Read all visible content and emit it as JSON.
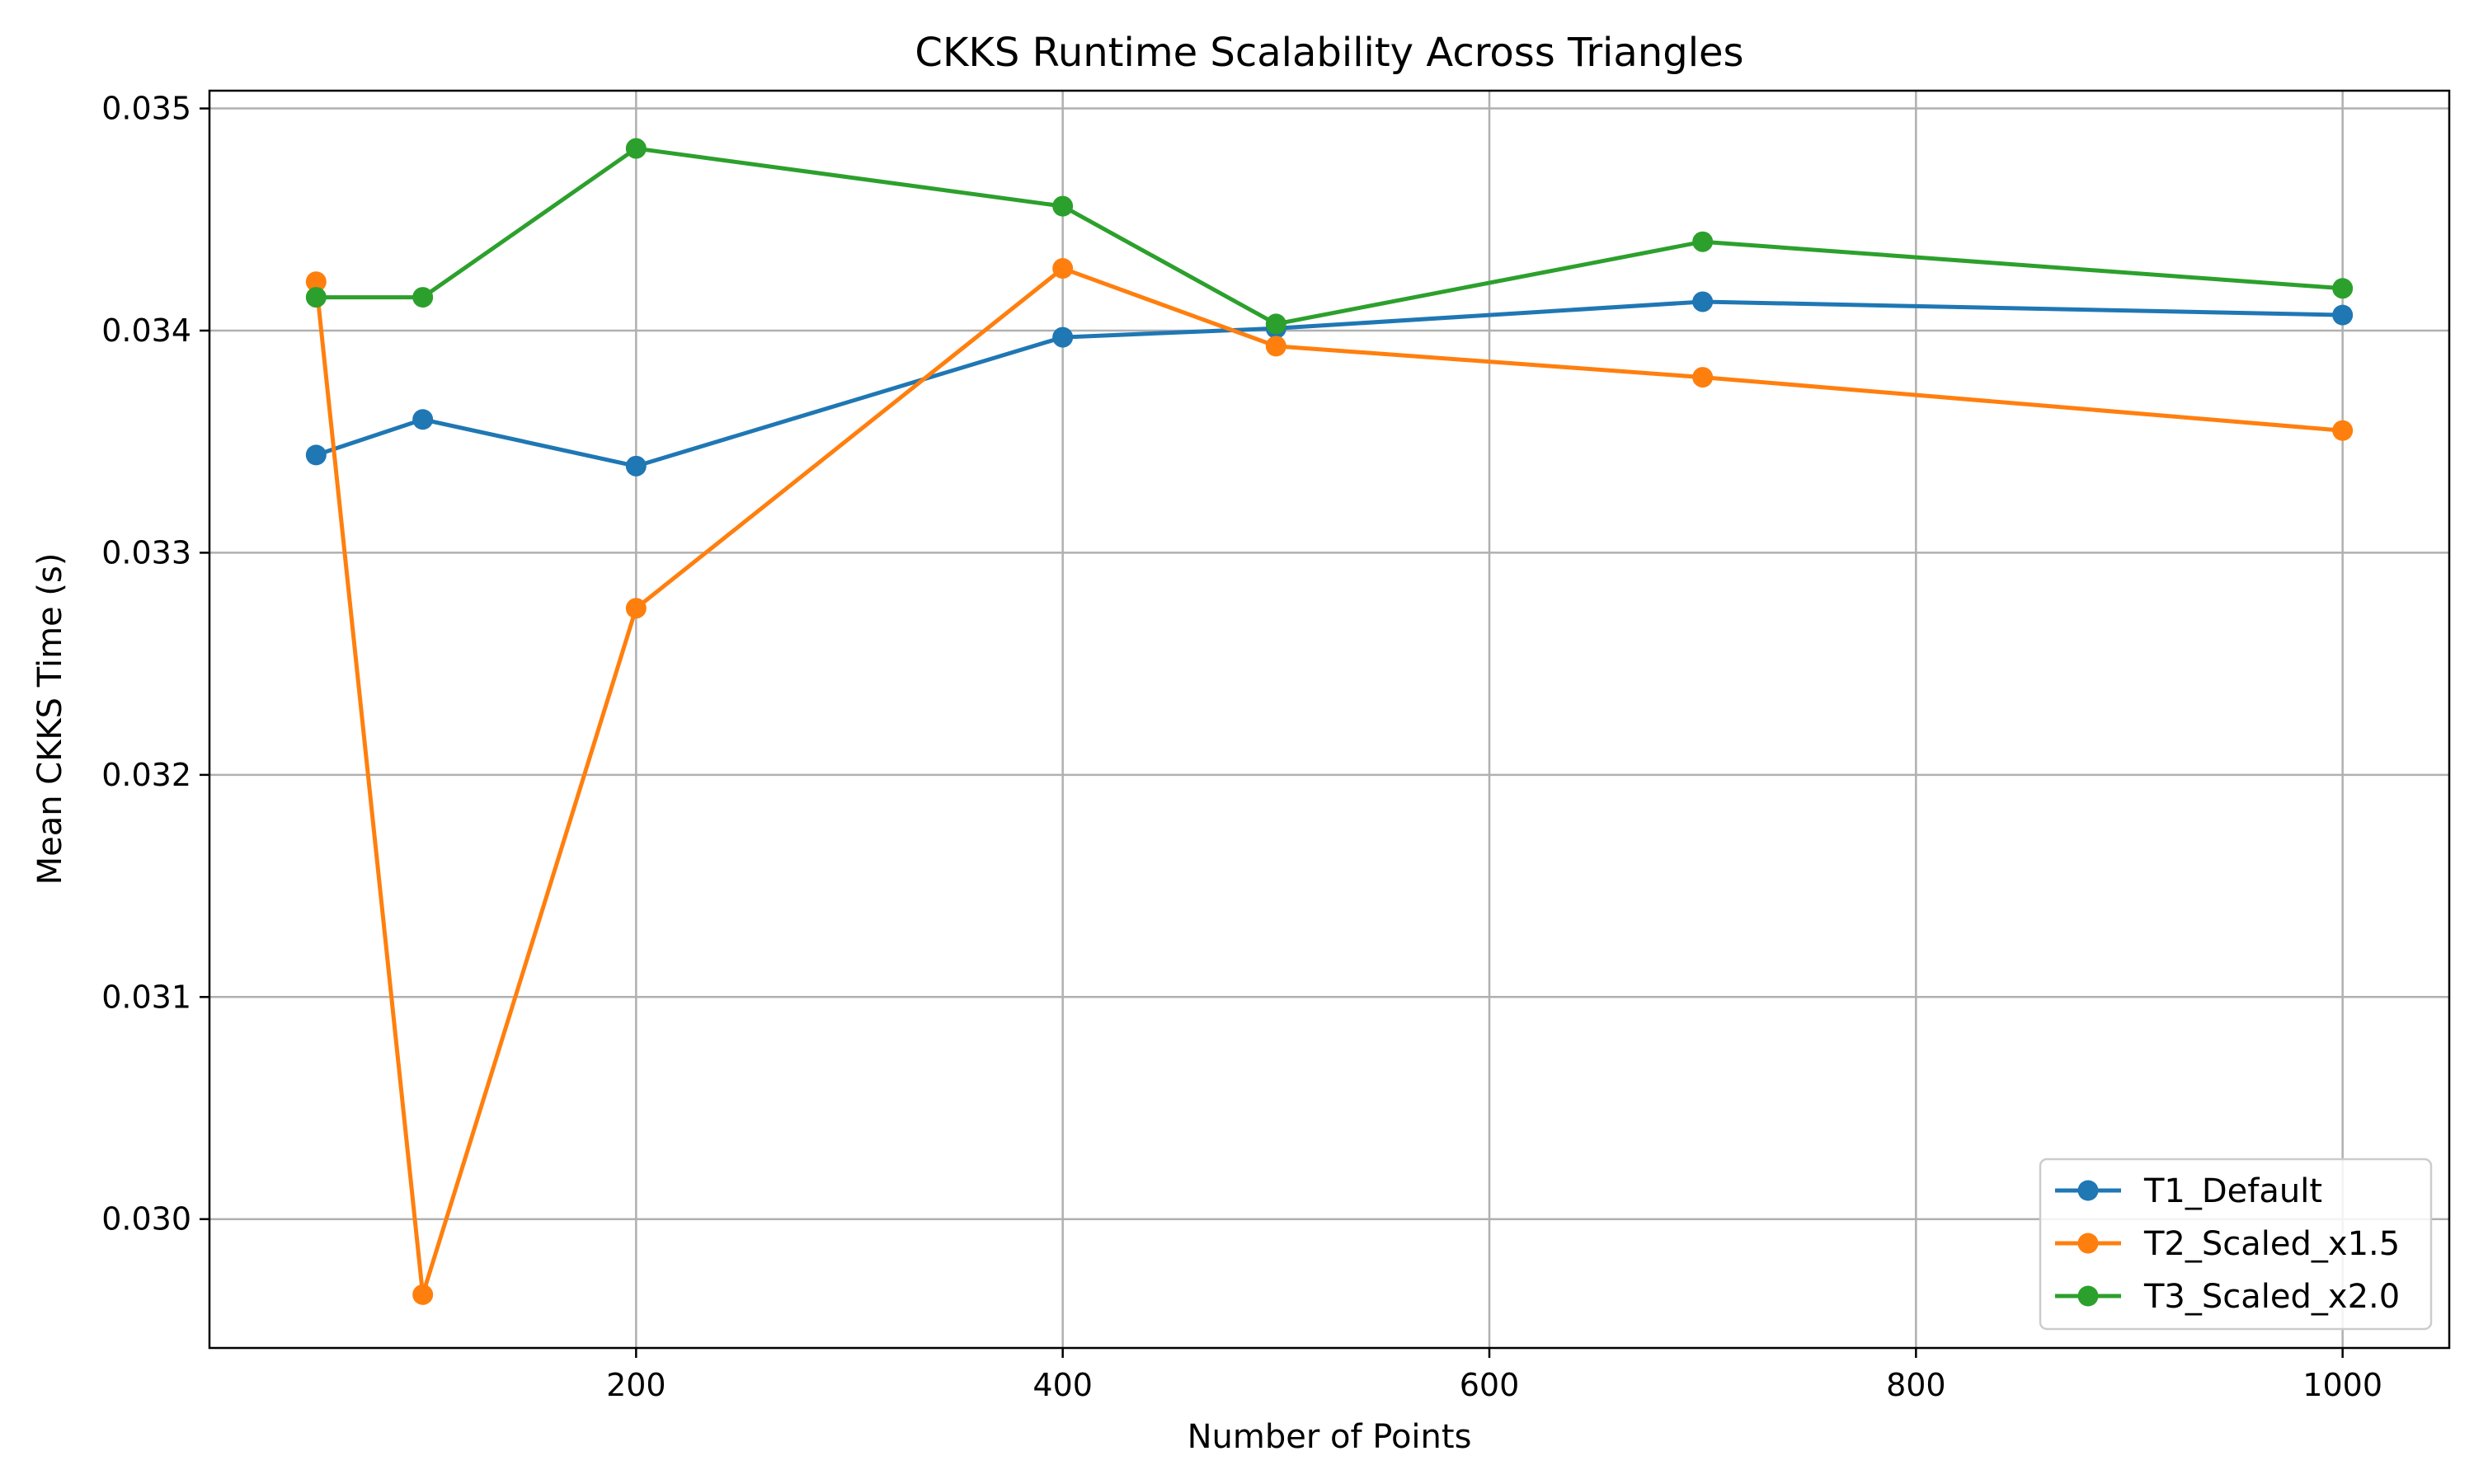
{
  "chart_data": {
    "type": "line",
    "title": "CKKS Runtime Scalability Across Triangles",
    "xlabel": "Number of Points",
    "ylabel": "Mean CKKS Time (s)",
    "xlim": [
      0,
      1050
    ],
    "ylim": [
      0.02942,
      0.03508
    ],
    "xticks": [
      200,
      400,
      600,
      800,
      1000
    ],
    "xtick_labels": [
      "200",
      "400",
      "600",
      "800",
      "1000"
    ],
    "yticks": [
      0.03,
      0.031,
      0.032,
      0.033,
      0.034,
      0.035
    ],
    "ytick_labels": [
      "0.030",
      "0.031",
      "0.032",
      "0.033",
      "0.034",
      "0.035"
    ],
    "grid": true,
    "legend_position": "lower-right",
    "x": [
      50,
      100,
      200,
      400,
      500,
      700,
      1000
    ],
    "series": [
      {
        "name": "T1_Default",
        "color": "#1f77b4",
        "values": [
          0.03344,
          0.0336,
          0.03339,
          0.03397,
          0.03401,
          0.03413,
          0.03407
        ]
      },
      {
        "name": "T2_Scaled_x1.5",
        "color": "#ff7f0e",
        "values": [
          0.03422,
          0.02966,
          0.03275,
          0.03428,
          0.03393,
          0.03379,
          0.03355
        ]
      },
      {
        "name": "T3_Scaled_x2.0",
        "color": "#2ca02c",
        "values": [
          0.03415,
          0.03415,
          0.03482,
          0.03456,
          0.03403,
          0.0344,
          0.03419
        ]
      }
    ]
  }
}
